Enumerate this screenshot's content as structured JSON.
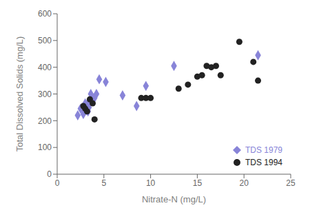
{
  "chart_data": {
    "type": "scatter",
    "xlabel": "Nitrate-N (mg/L)",
    "ylabel": "Total Dissolved Solids (mg/L)",
    "xlim": [
      0,
      25
    ],
    "ylim": [
      0,
      600
    ],
    "xticks": [
      0,
      5,
      10,
      15,
      20,
      25
    ],
    "yticks": [
      0,
      100,
      200,
      300,
      400,
      500,
      600
    ],
    "grid": false,
    "legend": "lower right",
    "series": [
      {
        "name": "TDS 1979",
        "marker": "diamond",
        "color": "#8884d8",
        "x": [
          2.2,
          2.5,
          2.7,
          2.8,
          2.9,
          3.0,
          3.0,
          3.1,
          3.2,
          3.3,
          3.4,
          3.5,
          3.6,
          3.8,
          4.0,
          4.2,
          4.5,
          5.2,
          7.0,
          8.5,
          9.5,
          12.5,
          21.5
        ],
        "values": [
          220,
          245,
          240,
          225,
          250,
          255,
          265,
          240,
          260,
          235,
          250,
          270,
          300,
          285,
          285,
          300,
          355,
          345,
          295,
          255,
          330,
          405,
          445
        ]
      },
      {
        "name": "TDS 1994",
        "marker": "circle",
        "color": "#222222",
        "x": [
          2.8,
          3.0,
          3.2,
          3.5,
          3.8,
          4.0,
          9.0,
          9.5,
          10.0,
          13.0,
          14.0,
          15.0,
          15.5,
          16.0,
          16.5,
          17.0,
          17.5,
          19.5,
          21.0,
          21.5
        ],
        "values": [
          255,
          245,
          235,
          280,
          265,
          205,
          285,
          285,
          285,
          320,
          335,
          365,
          370,
          405,
          400,
          405,
          370,
          495,
          420,
          350
        ]
      }
    ]
  }
}
